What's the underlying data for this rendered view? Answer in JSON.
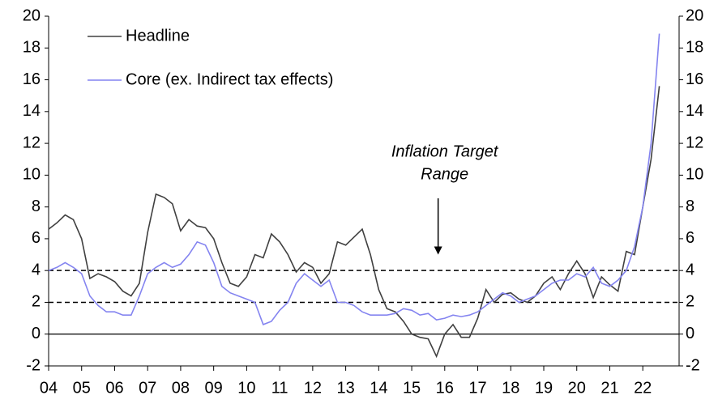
{
  "chart_data": {
    "type": "line",
    "x": [
      2004,
      2004.25,
      2004.5,
      2004.75,
      2005,
      2005.25,
      2005.5,
      2005.75,
      2006,
      2006.25,
      2006.5,
      2006.75,
      2007,
      2007.25,
      2007.5,
      2007.75,
      2008,
      2008.25,
      2008.5,
      2008.75,
      2009,
      2009.25,
      2009.5,
      2009.75,
      2010,
      2010.25,
      2010.5,
      2010.75,
      2011,
      2011.25,
      2011.5,
      2011.75,
      2012,
      2012.25,
      2012.5,
      2012.75,
      2013,
      2013.25,
      2013.5,
      2013.75,
      2014,
      2014.25,
      2014.5,
      2014.75,
      2015,
      2015.25,
      2015.5,
      2015.75,
      2016,
      2016.25,
      2016.5,
      2016.75,
      2017,
      2017.25,
      2017.5,
      2017.75,
      2018,
      2018.25,
      2018.5,
      2018.75,
      2019,
      2019.25,
      2019.5,
      2019.75,
      2020,
      2020.25,
      2020.5,
      2020.75,
      2021,
      2021.25,
      2021.5,
      2021.75,
      2022,
      2022.25,
      2022.5
    ],
    "series": [
      {
        "name": "Headline",
        "color": "#404040",
        "values": [
          6.6,
          7.0,
          7.5,
          7.2,
          6.0,
          3.5,
          3.8,
          3.6,
          3.3,
          2.7,
          2.4,
          3.2,
          6.4,
          8.8,
          8.6,
          8.2,
          6.5,
          7.2,
          6.8,
          6.7,
          6.0,
          4.5,
          3.2,
          3.0,
          3.6,
          5.0,
          4.8,
          6.3,
          5.8,
          5.0,
          3.9,
          4.5,
          4.2,
          3.2,
          3.8,
          5.8,
          5.6,
          6.1,
          6.6,
          5.0,
          2.8,
          1.6,
          1.4,
          0.8,
          0.0,
          -0.2,
          -0.3,
          -1.4,
          0.0,
          0.6,
          -0.2,
          -0.2,
          1.0,
          2.8,
          2.0,
          2.5,
          2.6,
          2.2,
          2.0,
          2.4,
          3.2,
          3.6,
          2.8,
          3.8,
          4.6,
          3.8,
          2.3,
          3.6,
          3.1,
          2.7,
          5.2,
          5.0,
          8.0,
          11.0,
          15.6
        ]
      },
      {
        "name": "Core (ex. Indirect tax effects)",
        "color": "#8484f0",
        "values": [
          4.0,
          4.2,
          4.5,
          4.2,
          3.8,
          2.4,
          1.8,
          1.4,
          1.4,
          1.2,
          1.2,
          2.4,
          3.8,
          4.2,
          4.5,
          4.2,
          4.4,
          5.0,
          5.8,
          5.6,
          4.5,
          3.0,
          2.6,
          2.4,
          2.2,
          2.0,
          0.6,
          0.8,
          1.5,
          2.0,
          3.2,
          3.8,
          3.4,
          3.0,
          3.4,
          2.0,
          2.0,
          1.8,
          1.4,
          1.2,
          1.2,
          1.2,
          1.3,
          1.6,
          1.5,
          1.2,
          1.3,
          0.9,
          1.0,
          1.2,
          1.1,
          1.2,
          1.4,
          1.8,
          2.2,
          2.6,
          2.4,
          2.0,
          2.2,
          2.4,
          2.8,
          3.2,
          3.4,
          3.4,
          3.8,
          3.6,
          4.2,
          3.2,
          3.0,
          3.4,
          4.0,
          5.5,
          8.0,
          12.0,
          18.9
        ]
      }
    ],
    "xlim": [
      2004,
      2023.1
    ],
    "xticks": [
      {
        "value": 2004,
        "label": "04"
      },
      {
        "value": 2005,
        "label": "05"
      },
      {
        "value": 2006,
        "label": "06"
      },
      {
        "value": 2007,
        "label": "07"
      },
      {
        "value": 2008,
        "label": "08"
      },
      {
        "value": 2009,
        "label": "09"
      },
      {
        "value": 2010,
        "label": "10"
      },
      {
        "value": 2011,
        "label": "11"
      },
      {
        "value": 2012,
        "label": "12"
      },
      {
        "value": 2013,
        "label": "13"
      },
      {
        "value": 2014,
        "label": "14"
      },
      {
        "value": 2015,
        "label": "15"
      },
      {
        "value": 2016,
        "label": "16"
      },
      {
        "value": 2017,
        "label": "17"
      },
      {
        "value": 2018,
        "label": "18"
      },
      {
        "value": 2019,
        "label": "19"
      },
      {
        "value": 2020,
        "label": "20"
      },
      {
        "value": 2021,
        "label": "21"
      },
      {
        "value": 2022,
        "label": "22"
      }
    ],
    "ylim": [
      -2,
      20
    ],
    "yticks": [
      -2,
      0,
      2,
      4,
      6,
      8,
      10,
      12,
      14,
      16,
      18,
      20
    ],
    "target_range": [
      2,
      4
    ],
    "annotation": [
      "Inflation Target",
      "Range"
    ],
    "annotation_arrow": {
      "x": 2015.8,
      "y": 5
    }
  }
}
